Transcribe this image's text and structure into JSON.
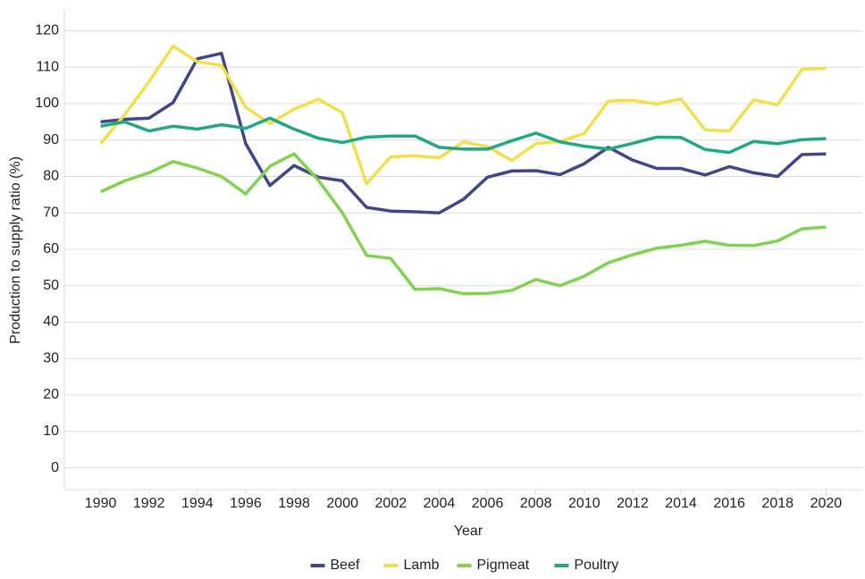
{
  "chart_data": {
    "type": "line",
    "x_label": "Year",
    "y_label": "Production to supply ratio (%)",
    "x": [
      1990,
      1991,
      1992,
      1993,
      1994,
      1995,
      1996,
      1997,
      1998,
      1999,
      2000,
      2001,
      2002,
      2003,
      2004,
      2005,
      2006,
      2007,
      2008,
      2009,
      2010,
      2011,
      2012,
      2013,
      2014,
      2015,
      2016,
      2017,
      2018,
      2019,
      2020
    ],
    "xlim": [
      1988.5,
      2021.5
    ],
    "xticks": [
      1990,
      1992,
      1994,
      1996,
      1998,
      2000,
      2002,
      2004,
      2006,
      2008,
      2010,
      2012,
      2014,
      2016,
      2018,
      2020
    ],
    "ylim": [
      -6,
      126
    ],
    "yticks": [
      0,
      10,
      20,
      30,
      40,
      50,
      60,
      70,
      80,
      90,
      100,
      110,
      120
    ],
    "grid": true,
    "legend": "bottom",
    "series": [
      {
        "name": "Beef",
        "color": "#404688",
        "values": [
          95,
          95.7,
          96,
          100.3,
          112.3,
          113.8,
          89,
          77.5,
          83,
          79.8,
          78.8,
          71.5,
          70.5,
          70.3,
          70,
          73.7,
          79.8,
          81.5,
          81.6,
          80.5,
          83.5,
          88,
          84.5,
          82.2,
          82.2,
          80.4,
          82.7,
          81,
          80,
          86,
          86.2
        ]
      },
      {
        "name": "Lamb",
        "color": "#f1e04b",
        "values": [
          89,
          97,
          106,
          115.8,
          111.5,
          110.5,
          99,
          94.5,
          98.5,
          101.2,
          97.5,
          78,
          85.4,
          85.7,
          85.1,
          89.5,
          88.2,
          84.4,
          89,
          89.6,
          91.8,
          100.7,
          100.9,
          99.9,
          101.3,
          92.8,
          92.5,
          101,
          99.7,
          109.4,
          109.7
        ]
      },
      {
        "name": "Pigmeat",
        "color": "#7fd34e",
        "values": [
          75.8,
          78.8,
          81,
          84.1,
          82.3,
          80,
          75.2,
          82.8,
          86.2,
          79,
          70,
          58.3,
          57.5,
          49,
          49.2,
          47.8,
          47.9,
          48.7,
          51.7,
          50,
          52.6,
          56.3,
          58.5,
          60.3,
          61.1,
          62.2,
          61.1,
          61,
          62.3,
          65.6,
          66.1
        ]
      },
      {
        "name": "Poultry",
        "color": "#22a884",
        "values": [
          93.8,
          95,
          92.5,
          93.8,
          93,
          94.2,
          93.2,
          96,
          93,
          90.5,
          89.3,
          90.8,
          91.1,
          91.1,
          88,
          87.5,
          87.5,
          89.8,
          91.9,
          89.5,
          88.3,
          87.5,
          89.1,
          90.8,
          90.7,
          87.4,
          86.6,
          89.6,
          89,
          90.1,
          90.4
        ]
      }
    ]
  }
}
